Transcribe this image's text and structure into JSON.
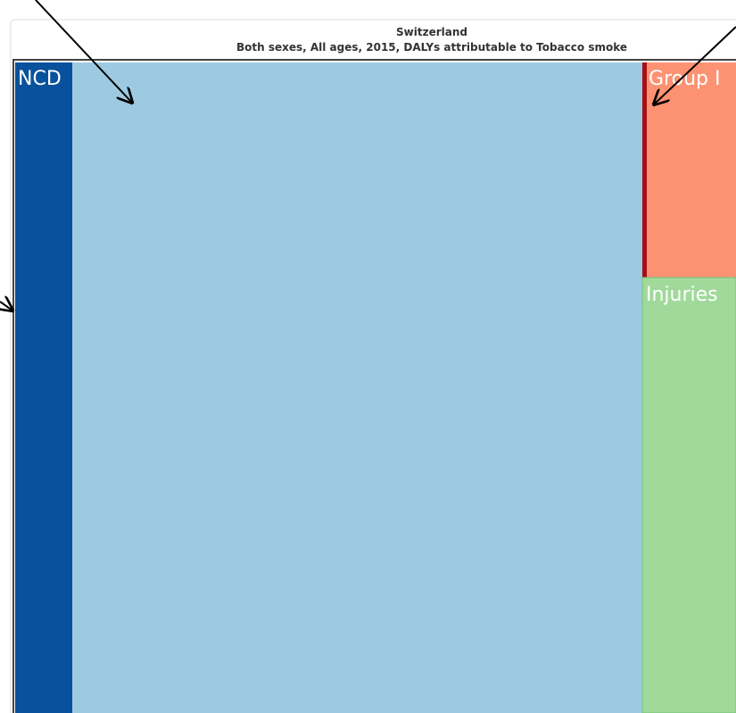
{
  "header": {
    "title": "Switzerland",
    "subtitle": "Both sexes, All ages, 2015, DALYs attributable to Tobacco smoke"
  },
  "tiles": [
    {
      "label": "NCD"
    },
    {
      "label": "Group I"
    },
    {
      "label": "Injuries"
    }
  ]
}
